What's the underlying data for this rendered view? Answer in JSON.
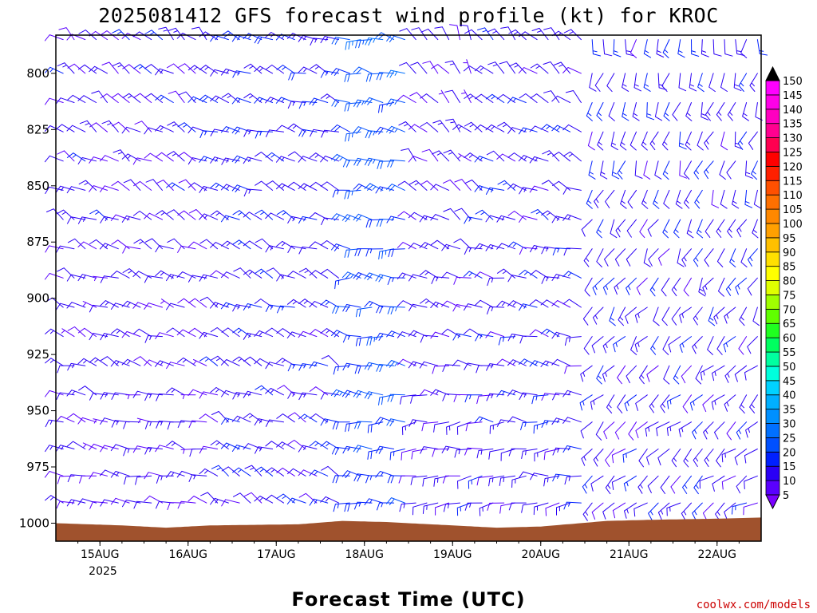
{
  "chart_data": {
    "type": "wind_barbs",
    "title": "2025081412 GFS forecast wind profile (kt) for KROC",
    "xlabel": "Forecast Time (UTC)",
    "ylabel": "",
    "credit": "coolwx.com/models",
    "x_ticks": [
      "15AUG",
      "16AUG",
      "17AUG",
      "18AUG",
      "19AUG",
      "20AUG",
      "21AUG",
      "22AUG"
    ],
    "x_year_label": "2025",
    "x_range_hours": [
      -12,
      180
    ],
    "y_ticks": [
      800,
      825,
      850,
      875,
      900,
      925,
      950,
      975,
      1000
    ],
    "y_range": [
      783,
      1008
    ],
    "pressure_levels": [
      785,
      800,
      813,
      826,
      839,
      852,
      865,
      878,
      891,
      904,
      917,
      930,
      943,
      955,
      967,
      979,
      991
    ],
    "time_step_hours": 6,
    "colorbar": {
      "unit": "kt",
      "levels": [
        5,
        10,
        15,
        20,
        25,
        30,
        35,
        40,
        45,
        50,
        55,
        60,
        65,
        70,
        75,
        80,
        85,
        90,
        95,
        100,
        105,
        110,
        115,
        120,
        125,
        130,
        135,
        140,
        145,
        150
      ],
      "colors": [
        "#7a00ff",
        "#5a00ff",
        "#2a00f5",
        "#0020ff",
        "#0050ff",
        "#0070ff",
        "#0090ff",
        "#00b0ff",
        "#00d2ff",
        "#00ffdd",
        "#00ffa0",
        "#00ff60",
        "#20ff20",
        "#60ff00",
        "#a0ff00",
        "#e0ff00",
        "#ffff00",
        "#ffe000",
        "#ffc000",
        "#ffa000",
        "#ff8800",
        "#ff7000",
        "#ff5000",
        "#ff2000",
        "#ff0000",
        "#ff0050",
        "#ff0090",
        "#ff00c0",
        "#ff00e8",
        "#ff00ff"
      ]
    },
    "wind_regimes": [
      {
        "hours": [
          -12,
          30
        ],
        "upper_dir_deg": 310,
        "lower_dir_deg": 280,
        "upper_speed_kt": 12,
        "lower_speed_kt": 10
      },
      {
        "hours": [
          30,
          66
        ],
        "upper_dir_deg": 290,
        "lower_dir_deg": 300,
        "upper_speed_kt": 15,
        "lower_speed_kt": 12
      },
      {
        "hours": [
          66,
          84
        ],
        "upper_dir_deg": 280,
        "lower_dir_deg": 275,
        "upper_speed_kt": 22,
        "lower_speed_kt": 18
      },
      {
        "hours": [
          84,
          102
        ],
        "upper_dir_deg": 330,
        "lower_dir_deg": 250,
        "upper_speed_kt": 10,
        "lower_speed_kt": 12
      },
      {
        "hours": [
          102,
          132
        ],
        "upper_dir_deg": 315,
        "lower_dir_deg": 260,
        "upper_speed_kt": 13,
        "lower_speed_kt": 12
      },
      {
        "hours": [
          132,
          180
        ],
        "upper_dir_deg": 190,
        "lower_dir_deg": 240,
        "upper_speed_kt": 14,
        "lower_speed_kt": 12
      }
    ],
    "surface_pressure_hpa": [
      {
        "hour": -12,
        "p": 1000
      },
      {
        "hour": 6,
        "p": 1001
      },
      {
        "hour": 18,
        "p": 1002
      },
      {
        "hour": 30,
        "p": 1001
      },
      {
        "hour": 54,
        "p": 1000.5
      },
      {
        "hour": 66,
        "p": 999
      },
      {
        "hour": 78,
        "p": 999.5
      },
      {
        "hour": 96,
        "p": 1001
      },
      {
        "hour": 108,
        "p": 1002
      },
      {
        "hour": 120,
        "p": 1001.5
      },
      {
        "hour": 138,
        "p": 999
      },
      {
        "hour": 150,
        "p": 998.5
      },
      {
        "hour": 168,
        "p": 998
      },
      {
        "hour": 180,
        "p": 997.5
      }
    ],
    "terrain_color": "#a0522d"
  }
}
